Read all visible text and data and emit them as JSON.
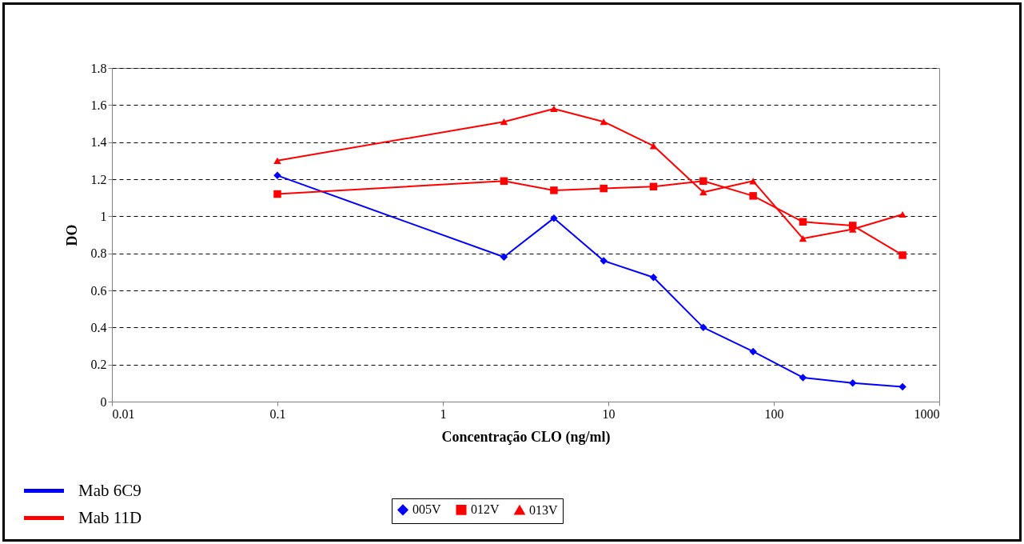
{
  "chart_data": {
    "type": "line",
    "xlabel": "Concentração CLO (ng/ml)",
    "ylabel": "DO",
    "x": [
      0.1,
      2.34,
      4.69,
      9.375,
      18.75,
      37.5,
      75,
      150,
      300,
      600
    ],
    "series": [
      {
        "name": "005V",
        "color": "#0000ff",
        "marker": "diamond",
        "values": [
          1.22,
          0.78,
          0.99,
          0.76,
          0.67,
          0.4,
          0.27,
          0.13,
          0.1,
          0.08
        ]
      },
      {
        "name": "012V",
        "color": "#ff0000",
        "marker": "square",
        "values": [
          1.12,
          1.19,
          1.14,
          1.15,
          1.16,
          1.19,
          1.11,
          0.97,
          0.95,
          0.79
        ]
      },
      {
        "name": "013V",
        "color": "#ff0000",
        "marker": "triangle",
        "values": [
          1.3,
          1.51,
          1.58,
          1.51,
          1.38,
          1.13,
          1.19,
          0.88,
          0.93,
          1.01
        ]
      }
    ],
    "log": "x",
    "xlim": [
      0.01,
      1000
    ],
    "xticks": [
      0.01,
      0.1,
      1,
      10,
      100,
      1000
    ],
    "ylim": [
      0,
      1.8
    ],
    "yticks": [
      0,
      0.2,
      0.4,
      0.6,
      0.8,
      1,
      1.2,
      1.4,
      1.6,
      1.8
    ],
    "grid": "y",
    "legend": "bottom",
    "line_style": "solid",
    "annotations": [
      "Mab 6C9",
      "Mab 11D"
    ]
  }
}
